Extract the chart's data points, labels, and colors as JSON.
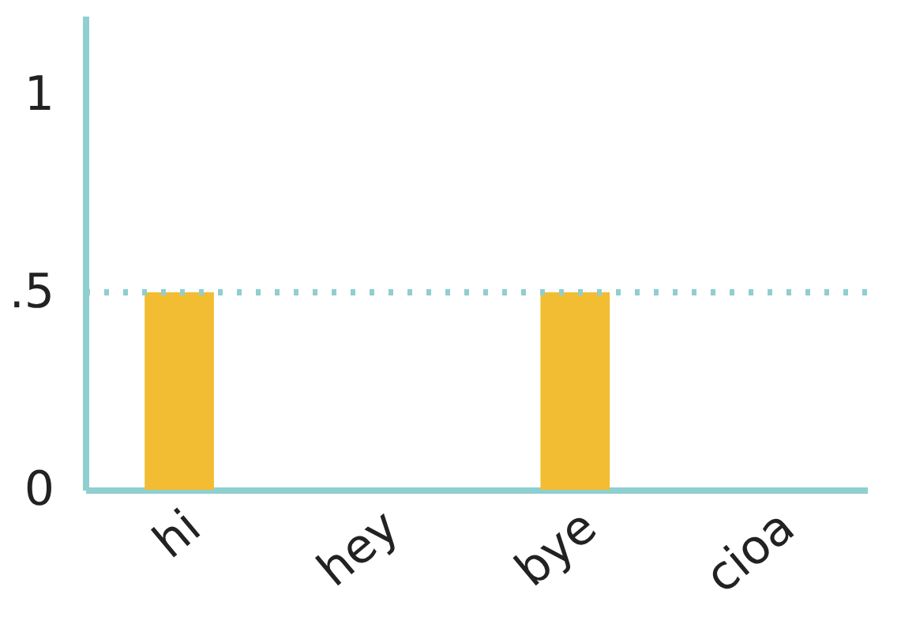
{
  "chart_data": {
    "type": "bar",
    "categories": [
      "hi",
      "hey",
      "bye",
      "cioa"
    ],
    "values": [
      0.5,
      0,
      0.5,
      0
    ],
    "color": "#f2bd32",
    "ylim": [
      0,
      1.2
    ],
    "yticks": [
      0,
      {
        "value": 0.5,
        "label": ".5"
      },
      1
    ],
    "grid": false,
    "ref_lines": [
      {
        "axis": "y",
        "value": 0.5,
        "color": "#8fcfd0",
        "line_style": "dotted"
      }
    ]
  }
}
